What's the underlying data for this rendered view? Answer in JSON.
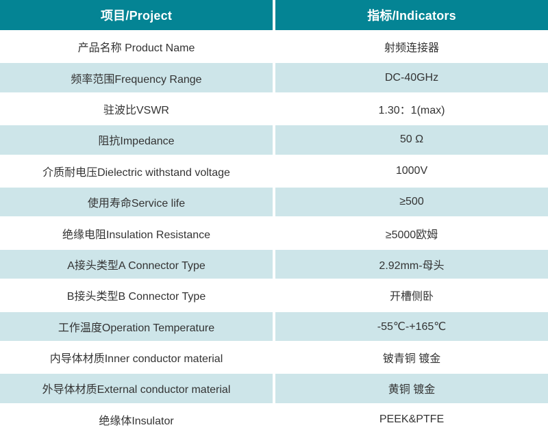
{
  "table": {
    "header": {
      "project": "项目/Project",
      "indicators": "指标/Indicators"
    },
    "rows": [
      {
        "project": "产品名称 Product Name",
        "indicator": "射频连接器"
      },
      {
        "project": "频率范围Frequency Range",
        "indicator": "DC-40GHz"
      },
      {
        "project": "驻波比VSWR",
        "indicator": "1.30：1(max)"
      },
      {
        "project": "阻抗Impedance",
        "indicator": "50 Ω"
      },
      {
        "project": "介质耐电压Dielectric withstand voltage",
        "indicator": "1000V"
      },
      {
        "project": "使用寿命Service life",
        "indicator": "≥500"
      },
      {
        "project": "绝缘电阻Insulation Resistance",
        "indicator": "≥5000欧姆"
      },
      {
        "project": "A接头类型A Connector Type",
        "indicator": "2.92mm-母头"
      },
      {
        "project": "B接头类型B Connector Type",
        "indicator": "开槽侧卧"
      },
      {
        "project": "工作温度Operation Temperature",
        "indicator": "-55℃-+165℃"
      },
      {
        "project": "内导体材质Inner conductor material",
        "indicator": "铍青铜 镀金"
      },
      {
        "project": "外导体材质External conductor material",
        "indicator": "黄铜 镀金"
      },
      {
        "project": "绝缘体Insulator",
        "indicator": "PEEK&PTFE"
      }
    ],
    "colors": {
      "header_bg": "#048494",
      "row_alt_bg": "#cde5e9",
      "header_text": "#ffffff",
      "body_text": "#333333"
    }
  }
}
